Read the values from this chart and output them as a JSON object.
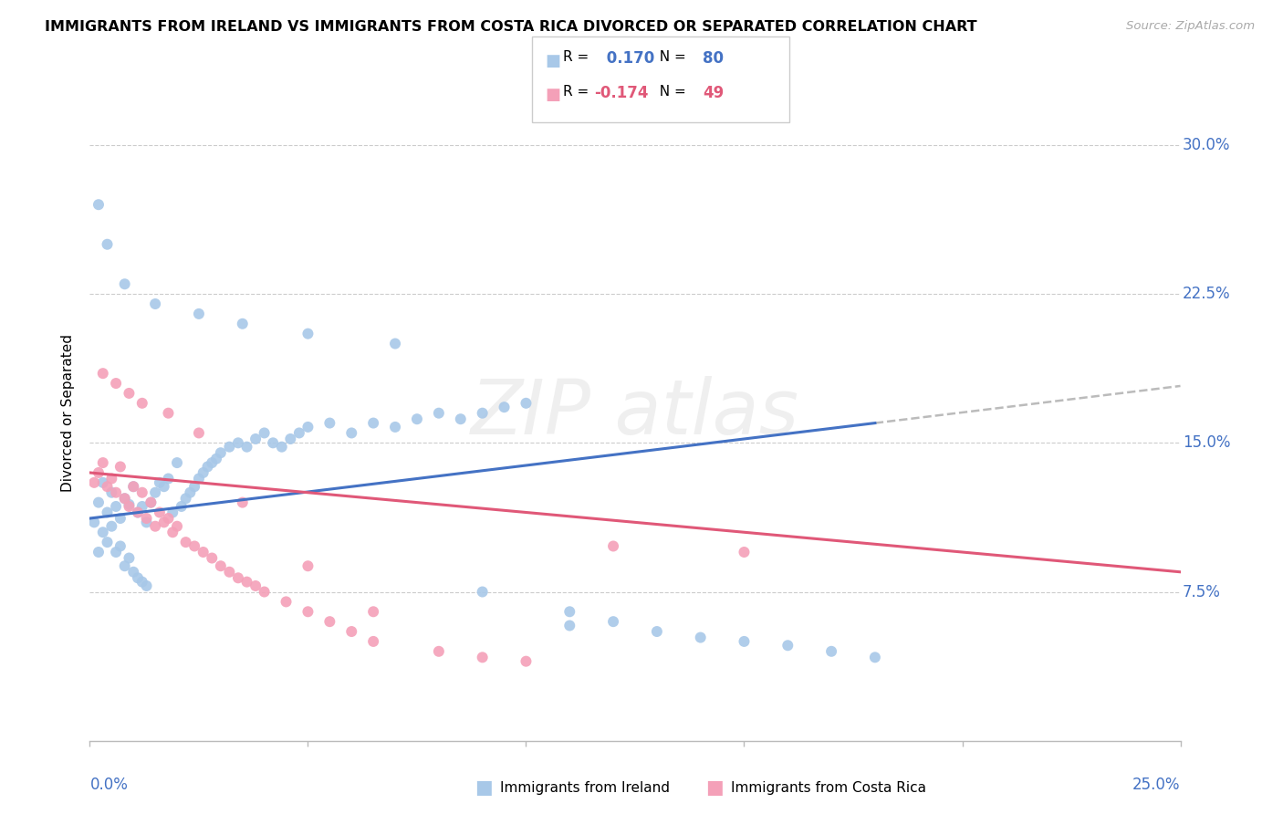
{
  "title": "IMMIGRANTS FROM IRELAND VS IMMIGRANTS FROM COSTA RICA DIVORCED OR SEPARATED CORRELATION CHART",
  "source": "Source: ZipAtlas.com",
  "ylabel": "Divorced or Separated",
  "yticks": [
    0.075,
    0.15,
    0.225,
    0.3
  ],
  "ytick_labels": [
    "7.5%",
    "15.0%",
    "22.5%",
    "30.0%"
  ],
  "xlim": [
    0.0,
    0.25
  ],
  "ylim": [
    0.0,
    0.33
  ],
  "ireland_color": "#A8C8E8",
  "costarica_color": "#F4A0B8",
  "ireland_line_color": "#4472C4",
  "costarica_line_color": "#E05878",
  "ireland_R": 0.17,
  "ireland_N": 80,
  "costarica_R": -0.174,
  "costarica_N": 49,
  "grid_color": "#CCCCCC",
  "ireland_x": [
    0.001,
    0.002,
    0.002,
    0.003,
    0.003,
    0.004,
    0.004,
    0.005,
    0.005,
    0.006,
    0.006,
    0.007,
    0.007,
    0.008,
    0.008,
    0.009,
    0.009,
    0.01,
    0.01,
    0.011,
    0.011,
    0.012,
    0.012,
    0.013,
    0.013,
    0.014,
    0.015,
    0.016,
    0.017,
    0.018,
    0.019,
    0.02,
    0.021,
    0.022,
    0.023,
    0.024,
    0.025,
    0.026,
    0.027,
    0.028,
    0.029,
    0.03,
    0.032,
    0.034,
    0.036,
    0.038,
    0.04,
    0.042,
    0.044,
    0.046,
    0.048,
    0.05,
    0.055,
    0.06,
    0.065,
    0.07,
    0.075,
    0.08,
    0.085,
    0.09,
    0.095,
    0.1,
    0.11,
    0.12,
    0.13,
    0.14,
    0.15,
    0.16,
    0.17,
    0.18,
    0.002,
    0.004,
    0.008,
    0.015,
    0.025,
    0.035,
    0.05,
    0.07,
    0.09,
    0.11
  ],
  "ireland_y": [
    0.11,
    0.12,
    0.095,
    0.13,
    0.105,
    0.115,
    0.1,
    0.125,
    0.108,
    0.118,
    0.095,
    0.112,
    0.098,
    0.122,
    0.088,
    0.119,
    0.092,
    0.128,
    0.085,
    0.115,
    0.082,
    0.118,
    0.08,
    0.11,
    0.078,
    0.12,
    0.125,
    0.13,
    0.128,
    0.132,
    0.115,
    0.14,
    0.118,
    0.122,
    0.125,
    0.128,
    0.132,
    0.135,
    0.138,
    0.14,
    0.142,
    0.145,
    0.148,
    0.15,
    0.148,
    0.152,
    0.155,
    0.15,
    0.148,
    0.152,
    0.155,
    0.158,
    0.16,
    0.155,
    0.16,
    0.158,
    0.162,
    0.165,
    0.162,
    0.165,
    0.168,
    0.17,
    0.058,
    0.06,
    0.055,
    0.052,
    0.05,
    0.048,
    0.045,
    0.042,
    0.27,
    0.25,
    0.23,
    0.22,
    0.215,
    0.21,
    0.205,
    0.2,
    0.075,
    0.065
  ],
  "costarica_x": [
    0.001,
    0.002,
    0.003,
    0.004,
    0.005,
    0.006,
    0.007,
    0.008,
    0.009,
    0.01,
    0.011,
    0.012,
    0.013,
    0.014,
    0.015,
    0.016,
    0.017,
    0.018,
    0.019,
    0.02,
    0.022,
    0.024,
    0.026,
    0.028,
    0.03,
    0.032,
    0.034,
    0.036,
    0.038,
    0.04,
    0.045,
    0.05,
    0.055,
    0.06,
    0.065,
    0.08,
    0.09,
    0.1,
    0.12,
    0.15,
    0.003,
    0.006,
    0.009,
    0.012,
    0.018,
    0.025,
    0.035,
    0.05,
    0.065
  ],
  "costarica_y": [
    0.13,
    0.135,
    0.14,
    0.128,
    0.132,
    0.125,
    0.138,
    0.122,
    0.118,
    0.128,
    0.115,
    0.125,
    0.112,
    0.12,
    0.108,
    0.115,
    0.11,
    0.112,
    0.105,
    0.108,
    0.1,
    0.098,
    0.095,
    0.092,
    0.088,
    0.085,
    0.082,
    0.08,
    0.078,
    0.075,
    0.07,
    0.065,
    0.06,
    0.055,
    0.05,
    0.045,
    0.042,
    0.04,
    0.098,
    0.095,
    0.185,
    0.18,
    0.175,
    0.17,
    0.165,
    0.155,
    0.12,
    0.088,
    0.065
  ]
}
